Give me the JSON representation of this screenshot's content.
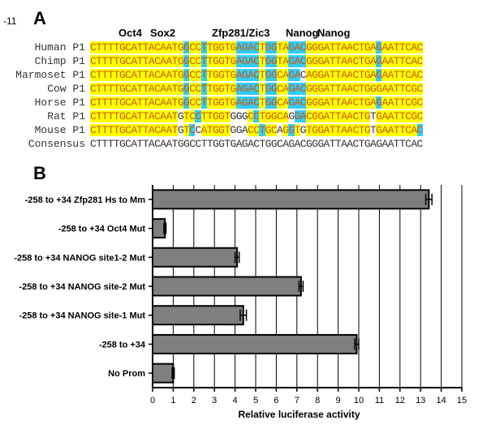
{
  "figure": {
    "corner_label": "-11",
    "panel_a_label": "A",
    "panel_b_label": "B"
  },
  "alignment": {
    "site_labels": [
      "Oct4",
      "Sox2",
      "Zfp281/Zic3",
      "Nanog",
      "Nanog"
    ],
    "colors": {
      "conserved": "#ffff00",
      "binding_site": "#33ccff",
      "text": "#c85a00"
    },
    "rows": [
      {
        "name": "Human P1",
        "seq": "CTTTTGCATTACAATGGCCTTGGTGAGACTGGTAGACGGGATTAACTGAGAATTCAC",
        "shade": "YYYYYYYYYYYYYYYYCYYCYYYYYCCCCYCCYYCCCYYYYYYYYYYYYCYYYYYYYC"
      },
      {
        "name": "Chimp P1",
        "seq": "CTTTTGCATTACAATGGCCTTGGTGAGACTGGTAGACGGGATTAACTGAGAATTCAC",
        "shade": "YYYYYYYYYYYYYYYYCYYCYYYYYCCCCYCCYYCCCYYYYYYYYYYYYCYYYYYYYC"
      },
      {
        "name": "Marmoset P1",
        "seq": "CTTTTGCATTACAATGGCCTTGGTGAGACTGGCAGACAGGATTAACTGAGAATTCAC",
        "shade": "YYYYYYYYYYYYYYYYCYYCYYYYYCCCCYCCYYCCNYYYYYYYYYYYYCYYYYYYYC"
      },
      {
        "name": "Cow P1",
        "seq": "CTTTTGCATTACAATGGCCTTGGTGAGACTGGCAGACGGGATTAACTGGGAATTCGC",
        "shade": "YYYYYYYYYYYYYYYYCYYCYYYYYCCCCYCCYYCCCYYYYYYYYYYYYYYYYYYYYY"
      },
      {
        "name": "Horse P1",
        "seq": "CTTTTGCATTACAATGGCCTTGGTGAGACTGGCAGACGGGATTAACTGAGAATTCGC",
        "shade": "YYYYYYYYYYYYYYYYCYYCYYYYYCCCCYCCYYCCCYYYYYYYYYYYYCYYYYYYYY"
      },
      {
        "name": "Rat P1",
        "seq": "CTTTTGCATTACAATGTCCTTGGTGGGCCTGGCAGGACGGATTAACTGTGAATTCGC",
        "shade": "YYYYYYYYYYYYYYYNYYCYYYYYNNNYCYYYYYNCCYYYYYYYYYYYNYYYYYYYYY"
      },
      {
        "name": "Mouse P1",
        "seq": "CTTTTGCATTACAATGTCCATGGTGGACCTGCAGGTGTGGATTAACTGTGAATTCAC",
        "shade": "YYYYYYYYYYYYYYYNYCNYYYYYNNNYYCYYNYCYNYYYYYYYYYYYNYYYYYYYC"
      },
      {
        "name": "Consensus",
        "seq": "CTTTTGCATTACAATGGCCTTGGTGAGACTGGCAGACGGGATTAACTGAGAATTCAC",
        "shade": "NNNNNNNNNNNNNNNNNNNNNNNNNNNNNNNNNNNNNNNNNNNNNNNNNNNNNNNNN"
      }
    ]
  },
  "chart_data": {
    "type": "bar",
    "orientation": "horizontal",
    "categories": [
      "-258 to +34 Zfp281 Hs to Mm",
      "-258 to +34 Oct4 Mut",
      "-258 to +34 NANOG site1-2 Mut",
      "-258 to +34 NANOG site-2 Mut",
      "-258 to +34 NANOG site-1 Mut",
      "-258 to +34",
      "No Prom"
    ],
    "values": [
      13.4,
      0.6,
      4.1,
      7.2,
      4.4,
      9.9,
      1.0
    ],
    "errors": [
      0.15,
      0.05,
      0.1,
      0.1,
      0.15,
      0.1,
      0.05
    ],
    "xlabel": "Relative luciferase activity",
    "xlim": [
      0,
      15
    ],
    "xticks": [
      0,
      1,
      2,
      3,
      4,
      5,
      6,
      7,
      8,
      9,
      10,
      11,
      12,
      13,
      14,
      15
    ],
    "grid": "vertical",
    "bar_color": "#7f7f7f"
  }
}
